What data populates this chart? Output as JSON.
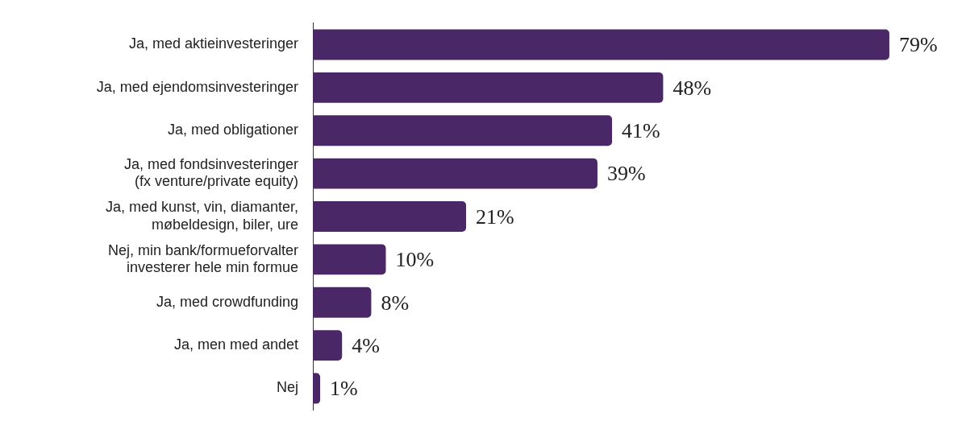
{
  "chart_data": {
    "type": "bar",
    "orientation": "horizontal",
    "categories": [
      "Ja, med aktieinvesteringer",
      "Ja, med ejendomsinvesteringer",
      "Ja, med obligationer",
      "Ja, med fondsinvesteringer (fx venture/private equity)",
      "Ja, med kunst, vin, diamanter, møbeldesign, biler, ure",
      "Nej, min bank/formueforvalter investerer hele min formue",
      "Ja, med crowdfunding",
      "Ja, men med andet",
      "Nej"
    ],
    "values": [
      79,
      48,
      41,
      39,
      21,
      10,
      8,
      4,
      1
    ],
    "value_labels": [
      "79%",
      "48%",
      "41%",
      "39%",
      "21%",
      "10%",
      "8%",
      "4%",
      "1%"
    ],
    "color": "#4a2867",
    "grid": false,
    "legend": false,
    "tick_labels": "y"
  }
}
